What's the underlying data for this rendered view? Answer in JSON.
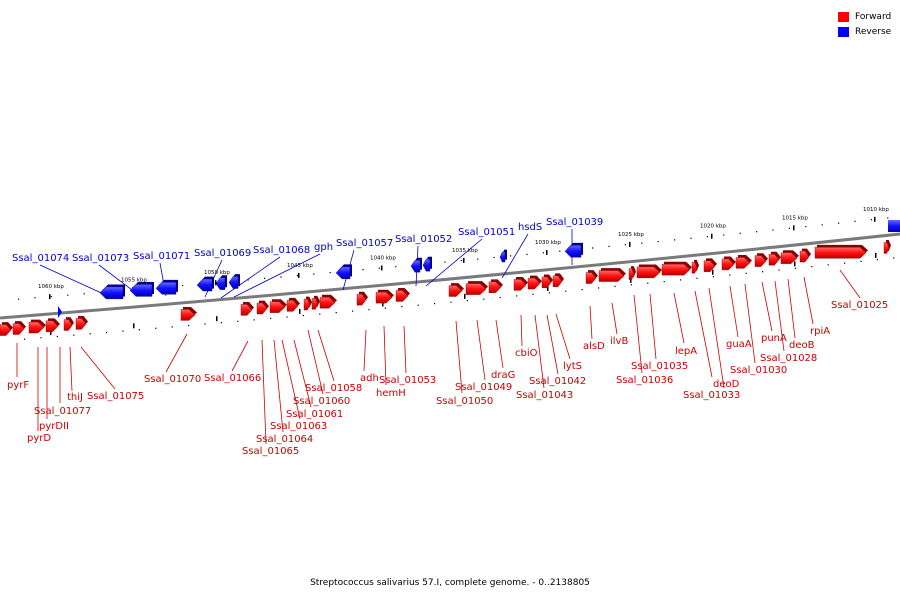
{
  "legend": [
    {
      "label": "Forward",
      "color": "#ff0000"
    },
    {
      "label": "Reverse",
      "color": "#0000ff"
    }
  ],
  "caption": "Streptococcus salivarius 57.I, complete genome. - 0..2138805",
  "scale_labels": [
    "1060 kbp",
    "1055 kbp",
    "1050 kbp",
    "1045 kbp",
    "1040 kbp",
    "1035 kbp",
    "1030 kbp",
    "1025 kbp",
    "1020 kbp",
    "1015 kbp",
    "1010 kbp"
  ],
  "reverse_genes": [
    "Ssal_01074",
    "Ssal_01073",
    "Ssal_01071",
    "Ssal_01069",
    "Ssal_01068",
    "gph",
    "Ssal_01057",
    "Ssal_01052",
    "Ssal_01051",
    "hsdS",
    "Ssal_01039"
  ],
  "forward_genes": [
    "pyrF",
    "Ssal_01077",
    "pyrDII",
    "pyrD",
    "thiJ",
    "Ssal_01075",
    "Ssal_01070",
    "Ssal_01066",
    "Ssal_01065",
    "Ssal_01064",
    "Ssal_01063",
    "Ssal_01061",
    "Ssal_01060",
    "Ssal_01058",
    "adh",
    "hemH",
    "Ssal_01053",
    "Ssal_01050",
    "Ssal_01049",
    "draG",
    "cbiO",
    "Ssal_01043",
    "Ssal_01042",
    "lytS",
    "alsD",
    "ilvB",
    "Ssal_01036",
    "Ssal_01035",
    "lepA",
    "deoD",
    "Ssal_01033",
    "guaA",
    "Ssal_01030",
    "punA",
    "Ssal_01028",
    "deoB",
    "rpiA",
    "Ssal_01025"
  ],
  "colors": {
    "forward": "#ff0000",
    "reverse": "#0000ff",
    "forward_label": "#cc0000",
    "reverse_label": "#0000cc",
    "axis": "#777777"
  }
}
